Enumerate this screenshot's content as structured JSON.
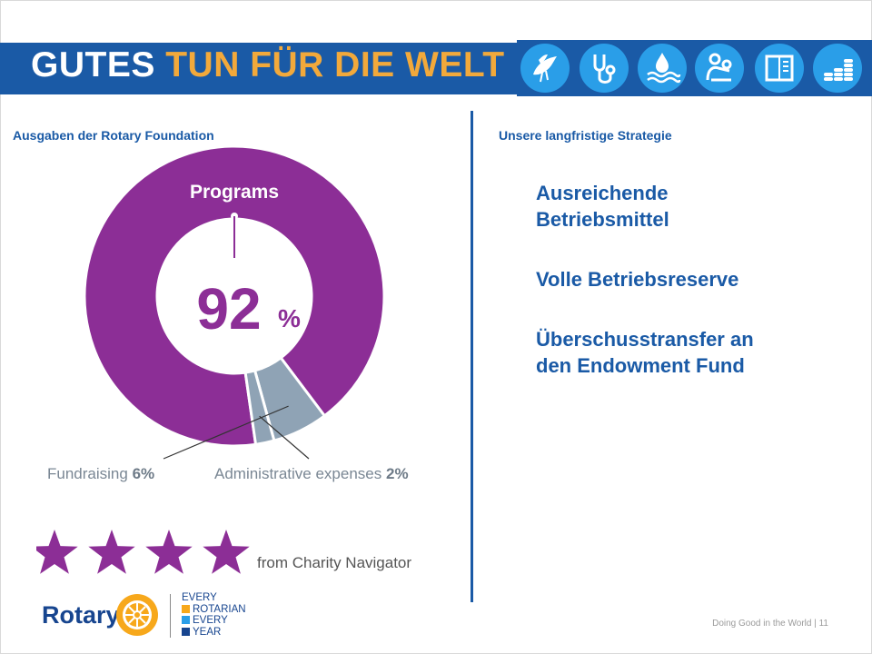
{
  "header": {
    "title_part1": "GUTES",
    "title_part2": "TUN FÜR DIE WELT",
    "icons": [
      "dove-icon",
      "stethoscope-icon",
      "water-icon",
      "mother-child-icon",
      "book-icon",
      "coins-icon"
    ]
  },
  "left": {
    "section_title": "Ausgaben der Rotary Foundation"
  },
  "right": {
    "section_title": "Unsere langfristige Strategie",
    "items": [
      [
        "Ausreichende",
        "Betriebsmittel"
      ],
      [
        "Volle Betriebsreserve"
      ],
      [
        "Überschusstransfer an",
        "den Endowment Fund"
      ]
    ]
  },
  "chart_data": {
    "type": "pie",
    "categories": [
      "Programs",
      "Fundraising",
      "Administrative expenses"
    ],
    "values": [
      92,
      6,
      2
    ],
    "center_value": "92",
    "center_unit": "%",
    "slice_labels": [
      {
        "name": "Programs",
        "value": ""
      },
      {
        "name": "Fundraising",
        "value": "6%"
      },
      {
        "name": "Administrative expenses",
        "value": "2%"
      }
    ],
    "colors": [
      "#8c2e96",
      "#8fa3b5",
      "#8fa3b5"
    ]
  },
  "rating": {
    "stars": 4,
    "source": "from Charity Navigator",
    "color": "#8c2e96"
  },
  "logo": {
    "wordmark": "Rotary",
    "tagline": [
      "EVERY",
      "ROTARIAN",
      "EVERY",
      "YEAR"
    ]
  },
  "footer": {
    "text": "Doing Good in the World",
    "separator": "|",
    "page": "11"
  },
  "colors": {
    "brand_blue": "#1a5aa6",
    "icon_blue": "#2a9ee8",
    "title_gold": "#f2a93b",
    "purple": "#8c2e96",
    "gray_slice": "#8fa3b5"
  }
}
